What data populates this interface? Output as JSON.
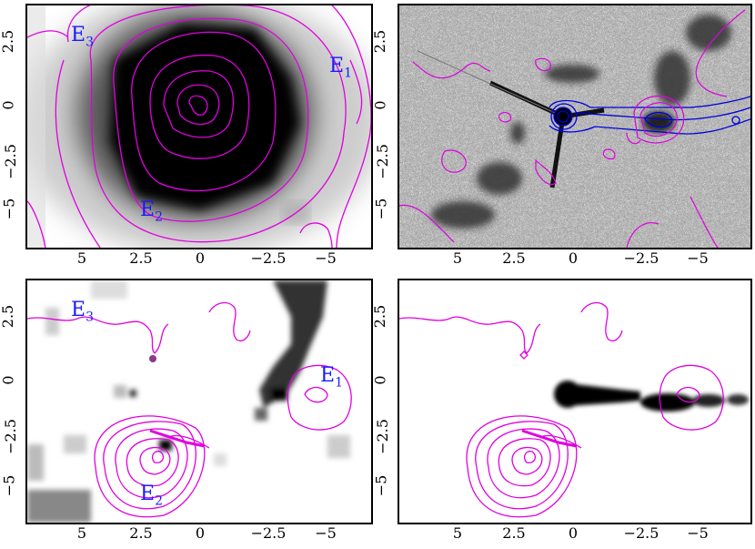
{
  "figure": {
    "panels": [
      {
        "id": "top-left",
        "x_ticks": [
          "5",
          "2.5",
          "0",
          "−2.5",
          "−5"
        ],
        "y_ticks_left": [
          "2.5",
          "0",
          "−2.5",
          "−5"
        ],
        "labels": [
          {
            "main": "E",
            "sub": "3"
          },
          {
            "main": "E",
            "sub": "1"
          },
          {
            "main": "E",
            "sub": "2"
          }
        ]
      },
      {
        "id": "top-right",
        "x_ticks": [
          "5",
          "2.5",
          "0",
          "−2.5",
          "−5"
        ],
        "y_ticks_left": [
          "2.5",
          "0",
          "−2.5",
          "−5"
        ]
      },
      {
        "id": "bottom-left",
        "x_ticks": [
          "5",
          "2.5",
          "0",
          "−2.5",
          "−5"
        ],
        "y_ticks_left": [
          "2.5",
          "0",
          "−2.5",
          "−5"
        ],
        "labels": [
          {
            "main": "E",
            "sub": "3"
          },
          {
            "main": "E",
            "sub": "1"
          },
          {
            "main": "E",
            "sub": "2"
          }
        ]
      },
      {
        "id": "bottom-right",
        "x_ticks": [
          "5",
          "2.5",
          "0",
          "−2.5",
          "−5"
        ],
        "y_ticks_left": [
          "2.5",
          "0",
          "−2.5",
          "−5"
        ]
      }
    ],
    "colors": {
      "contour_magenta": "#e000e0",
      "contour_blue": "#0000dd",
      "label_blue": "#1a1aff",
      "grey_dark": "#111111"
    }
  }
}
